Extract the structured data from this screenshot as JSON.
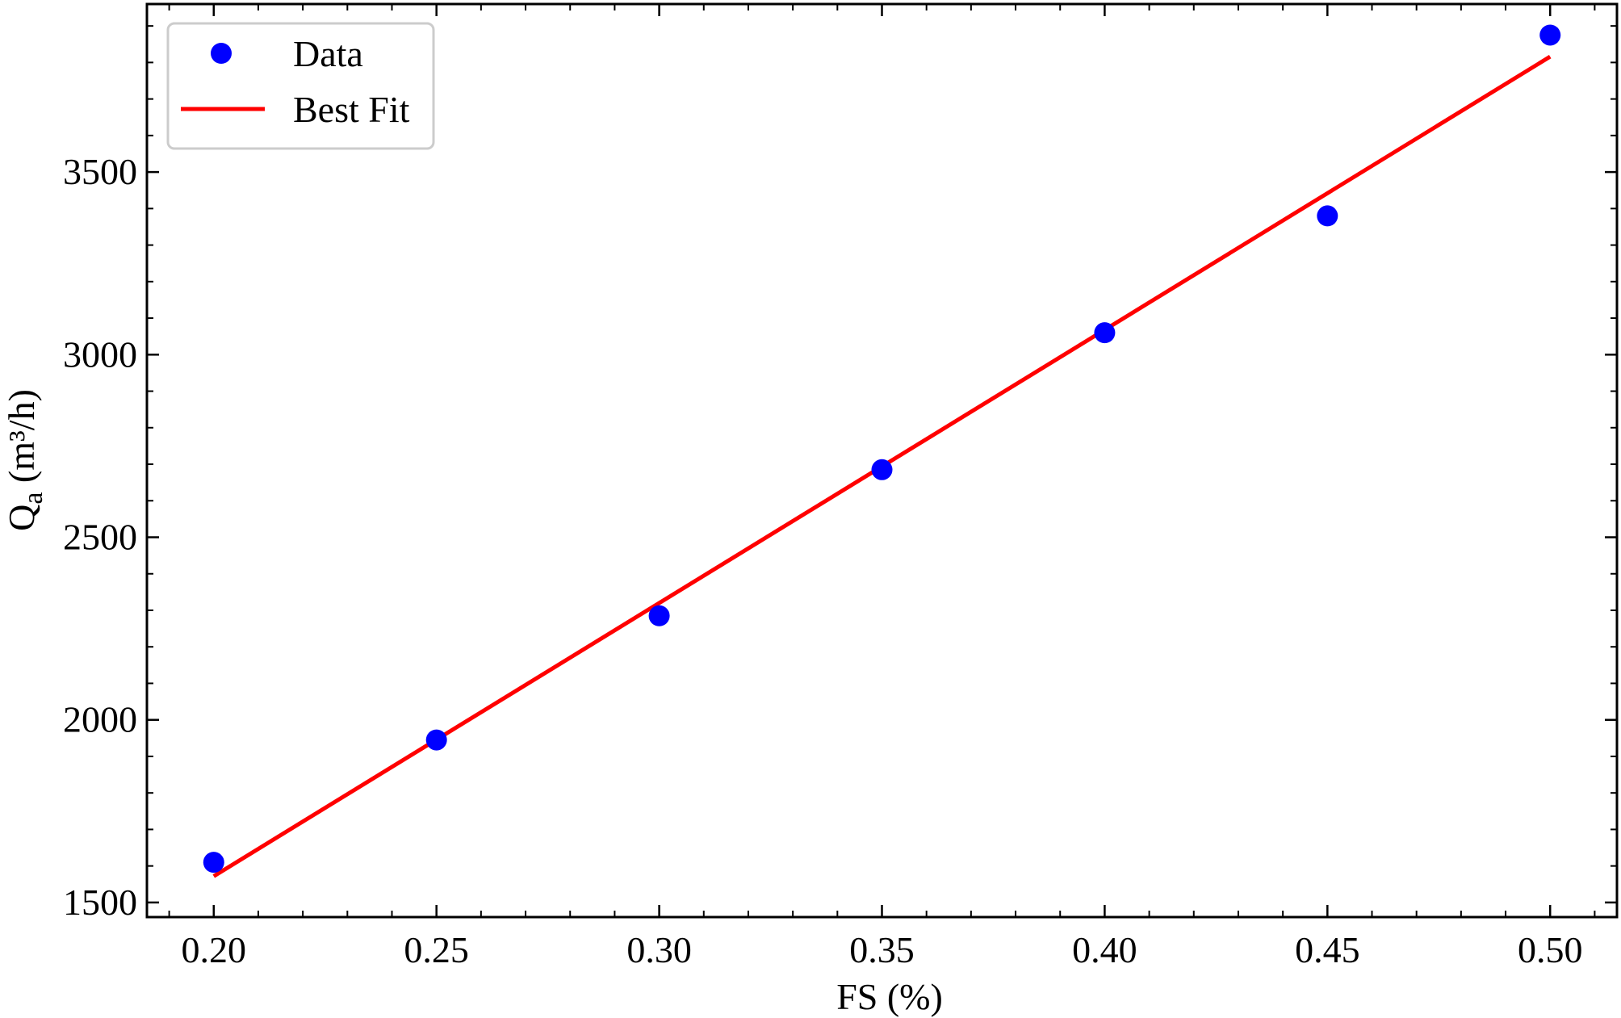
{
  "chart_data": {
    "type": "scatter",
    "xlabel": "FS (%)",
    "ylabel": {
      "main": "Q",
      "subscript": "a",
      "units": " (m³/h)"
    },
    "xlim": [
      0.185,
      0.515
    ],
    "ylim": [
      1460,
      3960
    ],
    "xticks": [
      0.2,
      0.25,
      0.3,
      0.35,
      0.4,
      0.45,
      0.5
    ],
    "xtick_labels": [
      "0.20",
      "0.25",
      "0.30",
      "0.35",
      "0.40",
      "0.45",
      "0.50"
    ],
    "yticks": [
      1500,
      2000,
      2500,
      3000,
      3500
    ],
    "ytick_labels": [
      "1500",
      "2000",
      "2500",
      "3000",
      "3500"
    ],
    "grid": false,
    "legend_position": "top-left",
    "series": [
      {
        "name": "Data",
        "kind": "scatter",
        "color": "#0000ff",
        "x": [
          0.2,
          0.25,
          0.3,
          0.35,
          0.4,
          0.45,
          0.5
        ],
        "y": [
          1610,
          1945,
          2285,
          2685,
          3060,
          3380,
          3875
        ]
      },
      {
        "name": "Best Fit",
        "kind": "line",
        "color": "#ff0000",
        "x": [
          0.2,
          0.5
        ],
        "y": [
          1572,
          3816
        ]
      }
    ]
  }
}
